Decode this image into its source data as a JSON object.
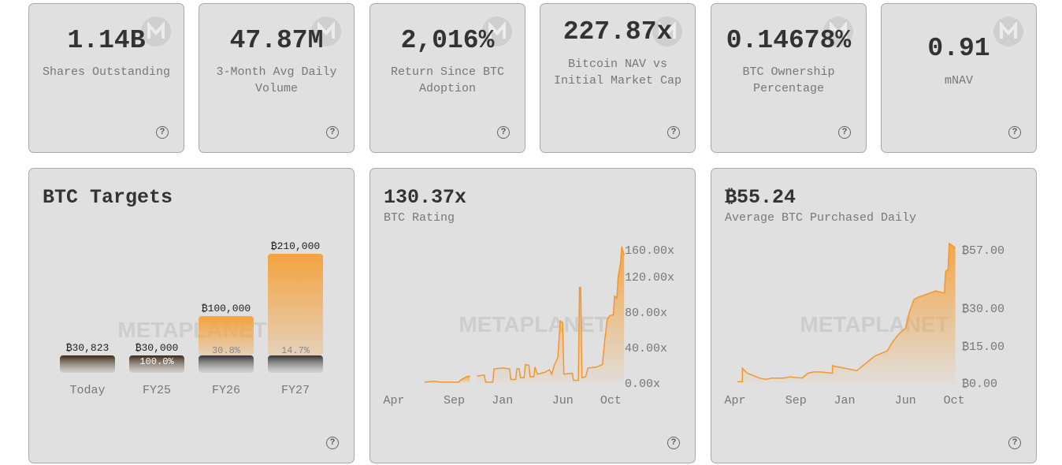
{
  "stats": [
    {
      "value": "1.14B",
      "label": "Shares Outstanding"
    },
    {
      "value": "47.87M",
      "label": "3-Month Avg Daily Volume"
    },
    {
      "value": "2,016%",
      "label": "Return Since BTC Adoption"
    },
    {
      "value": "227.87x",
      "label": "Bitcoin NAV vs Initial Market Cap"
    },
    {
      "value": "0.14678%",
      "label": "BTC Ownership Percentage"
    },
    {
      "value": "0.91",
      "label": "mNAV"
    }
  ],
  "logo_glyph": "M",
  "help_glyph": "?",
  "watermark": "METAPLANET",
  "colors": {
    "accent": "#f4a340",
    "card": "#e0e0e0",
    "dark_bar": "#4a3a2a"
  },
  "chart_data": [
    {
      "type": "bar",
      "title": "BTC Targets",
      "categories": [
        "Today",
        "FY25",
        "FY26",
        "FY27"
      ],
      "values": [
        30823,
        30000,
        100000,
        210000
      ],
      "value_labels": [
        "₿30,823",
        "₿30,000",
        "₿100,000",
        "₿210,000"
      ],
      "progress_labels": [
        "",
        "100.0%",
        "30.8%",
        "14.7%"
      ]
    },
    {
      "type": "area",
      "title": "130.37x",
      "subtitle": "BTC Rating",
      "x_ticks": [
        "Apr",
        "Sep",
        "Jan",
        "Jun",
        "Oct"
      ],
      "x_tick_months": [
        0,
        5,
        9,
        14,
        18
      ],
      "y_ticks": [
        "160.00x",
        "120.00x",
        "80.00x",
        "40.00x",
        "0.00x"
      ],
      "y_tick_values": [
        160,
        120,
        80,
        40,
        0
      ],
      "points": [
        [
          2.55,
          1
        ],
        [
          3.3,
          2
        ],
        [
          3.9,
          1
        ],
        [
          4.6,
          1
        ],
        [
          5.4,
          1
        ],
        [
          5.5,
          3
        ],
        [
          6.0,
          7
        ],
        [
          6.3,
          8
        ],
        null,
        [
          6.9,
          8
        ],
        [
          7.5,
          9
        ],
        [
          7.6,
          1
        ],
        [
          8.2,
          1
        ],
        [
          8.3,
          16
        ],
        [
          9.0,
          17
        ],
        [
          9.6,
          16
        ],
        [
          9.7,
          4
        ],
        [
          10.1,
          4
        ],
        [
          10.2,
          16
        ],
        [
          10.4,
          16
        ],
        [
          10.5,
          6
        ],
        [
          10.8,
          6
        ],
        [
          10.9,
          21
        ],
        [
          11.2,
          20
        ],
        [
          11.3,
          7
        ],
        [
          11.6,
          7
        ],
        [
          11.7,
          18
        ],
        [
          11.9,
          10
        ],
        [
          12.5,
          12
        ],
        [
          12.9,
          15
        ],
        [
          13.1,
          10
        ],
        [
          13.3,
          20
        ],
        [
          13.6,
          29
        ],
        [
          13.8,
          70
        ],
        [
          14.0,
          68
        ],
        [
          14.1,
          10
        ],
        [
          14.8,
          11
        ],
        [
          14.9,
          3
        ],
        [
          15.3,
          3
        ],
        [
          15.4,
          108
        ],
        [
          15.5,
          108
        ],
        [
          15.6,
          6
        ],
        [
          15.9,
          7
        ],
        [
          16.1,
          17
        ],
        [
          16.8,
          18
        ],
        [
          17.3,
          21
        ],
        [
          17.5,
          50
        ],
        [
          17.7,
          72
        ],
        [
          17.9,
          76
        ],
        [
          18.2,
          77
        ],
        [
          18.3,
          98
        ],
        [
          18.5,
          96
        ],
        [
          18.6,
          120
        ],
        [
          18.8,
          140
        ],
        [
          18.9,
          165
        ],
        [
          19.0,
          158
        ],
        [
          19.1,
          152
        ]
      ]
    },
    {
      "type": "area",
      "title": "₿55.24",
      "subtitle": "Average BTC Purchased Daily",
      "x_ticks": [
        "Apr",
        "Sep",
        "Jan",
        "Jun",
        "Oct"
      ],
      "x_tick_months": [
        0,
        5,
        9,
        14,
        18
      ],
      "y_ticks": [
        "₿57.00",
        "₿30.00",
        "₿15.00",
        "₿0.00"
      ],
      "y_tick_values": [
        57,
        30,
        15,
        0
      ],
      "points": [
        [
          0.2,
          0.5
        ],
        [
          0.6,
          0.5
        ],
        [
          0.6,
          6
        ],
        [
          1.0,
          4
        ],
        [
          1.5,
          3
        ],
        [
          2.0,
          2
        ],
        [
          2.5,
          1.5
        ],
        [
          3.0,
          2
        ],
        [
          4.0,
          2
        ],
        [
          4.5,
          2.5
        ],
        [
          5.5,
          2
        ],
        [
          6.0,
          4
        ],
        [
          6.5,
          4.5
        ],
        [
          7.0,
          4.5
        ],
        [
          8.0,
          4
        ],
        [
          8.0,
          7
        ],
        [
          9.0,
          6
        ],
        [
          10.0,
          5
        ],
        [
          10.5,
          7
        ],
        [
          11.0,
          9
        ],
        [
          11.5,
          11
        ],
        [
          12.0,
          12
        ],
        [
          12.5,
          13
        ],
        [
          13.0,
          17
        ],
        [
          13.5,
          20
        ],
        [
          14.0,
          22
        ],
        [
          14.3,
          28
        ],
        [
          14.7,
          34
        ],
        [
          15.0,
          35
        ],
        [
          15.5,
          36
        ],
        [
          16.0,
          37
        ],
        [
          16.5,
          38
        ],
        [
          17.2,
          37
        ],
        [
          17.3,
          47
        ],
        [
          17.5,
          48
        ],
        [
          17.6,
          60
        ],
        [
          18.1,
          58
        ]
      ]
    }
  ]
}
